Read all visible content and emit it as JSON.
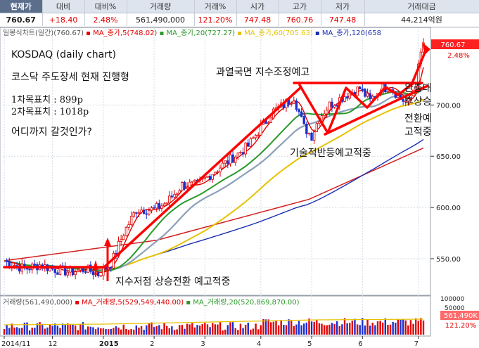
{
  "header": {
    "labels": [
      "현재가",
      "대비",
      "대비%",
      "거래량",
      "거래%",
      "시가",
      "고가",
      "저가",
      "거래대금"
    ],
    "values": [
      "760.67",
      "+18.40",
      "2.48%",
      "561,490,000",
      "121.20%",
      "747.48",
      "760.76",
      "747.48",
      "44,214억원"
    ]
  },
  "price_legend": [
    {
      "text": "일봉식차트(일간)(760.67)",
      "color": "#555555"
    },
    {
      "text": "MA_종가,5(748.02)",
      "color": "#e00000"
    },
    {
      "text": "MA_종가,20(727.27)",
      "color": "#2a9a2a"
    },
    {
      "text": "MA_종가,60(705.63)",
      "color": "#e6c200"
    },
    {
      "text": "MA_종가,120(658",
      "color": "#1a2fb0"
    }
  ],
  "volume_legend": [
    {
      "text": "거래량(561,490,000)",
      "color": "#555555"
    },
    {
      "text": "MA_거래량,5(529,549,440.00)",
      "color": "#e00000"
    },
    {
      "text": "MA_거래량,20(520,869,870.00)",
      "color": "#2a9a2a"
    }
  ],
  "annotations": {
    "title": "KOSDAQ (daily chart)",
    "subtitle": "코스닥 주도장세 현재 진행형",
    "target1": "1차목표치 : 899p",
    "target2": "2차목표치 : 1018p",
    "question": "어디까지 갈것인가?",
    "overheat": "과열국면 지수조정예고",
    "rebound": "기술적반등예고적중",
    "bottom": "지수저점 상승전환 예고적중",
    "side": [
      "완충대",
      "후상승",
      "전환예",
      "고적중"
    ]
  },
  "price_badge": {
    "value": "760.67",
    "change": "2.48%"
  },
  "volume_badge": {
    "value": "561,490K",
    "change": "121.20%"
  },
  "colors": {
    "up": "#e00000",
    "down": "#1a2fd0",
    "ma5": "#e00000",
    "ma20": "#2a9a2a",
    "ma60": "#e6c200",
    "ma120": "#1a2fb0",
    "long": "#d42020",
    "gray": "#8aa0b8",
    "arrow": "#ff0000"
  },
  "chart_data": {
    "type": "candlestick",
    "y_ticks": [
      550,
      600,
      650,
      700
    ],
    "ylim": [
      515,
      775
    ],
    "volume_ticks": [
      "100000",
      "50000"
    ],
    "x_ticks": [
      "2014/11",
      "12",
      "2015",
      "2",
      "3",
      "4",
      "5",
      "6",
      "7"
    ],
    "x_tick_index": [
      0,
      19,
      39,
      59,
      79,
      101,
      121,
      141,
      163
    ],
    "n_days": 166,
    "last_close": 760.67,
    "anchors": [
      [
        0,
        548
      ],
      [
        8,
        540
      ],
      [
        14,
        544
      ],
      [
        19,
        540
      ],
      [
        26,
        537
      ],
      [
        32,
        540
      ],
      [
        37,
        535
      ],
      [
        42,
        545
      ],
      [
        47,
        575
      ],
      [
        52,
        598
      ],
      [
        59,
        598
      ],
      [
        64,
        605
      ],
      [
        70,
        622
      ],
      [
        76,
        622
      ],
      [
        82,
        634
      ],
      [
        88,
        645
      ],
      [
        96,
        660
      ],
      [
        101,
        678
      ],
      [
        106,
        694
      ],
      [
        110,
        700
      ],
      [
        114,
        708
      ],
      [
        118,
        678
      ],
      [
        121,
        670
      ],
      [
        124,
        688
      ],
      [
        128,
        700
      ],
      [
        132,
        706
      ],
      [
        136,
        712
      ],
      [
        140,
        716
      ],
      [
        144,
        704
      ],
      [
        148,
        716
      ],
      [
        152,
        718
      ],
      [
        156,
        706
      ],
      [
        159,
        702
      ],
      [
        162,
        722
      ],
      [
        164,
        750
      ],
      [
        165,
        760.67
      ]
    ],
    "long_trend": [
      [
        0,
        548
      ],
      [
        60,
        568
      ],
      [
        120,
        608
      ],
      [
        165,
        658
      ]
    ]
  }
}
